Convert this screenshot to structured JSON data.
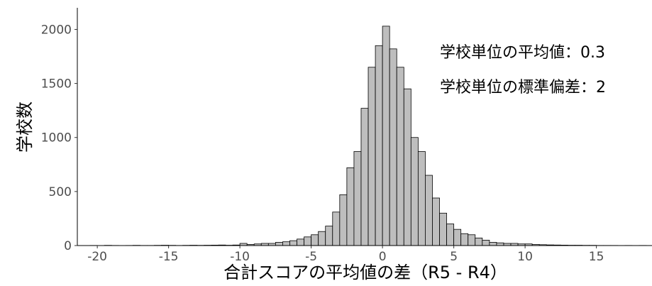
{
  "chart_data": {
    "type": "histogram",
    "x_label": "合計スコアの平均値の差（R5 - R4）",
    "y_label": "学校数",
    "annotations": [
      "学校単位の平均値：0.3",
      "学校単位の標準偏差：2"
    ],
    "bins": [
      -20.5,
      -20,
      -19.5,
      -19,
      -18.5,
      -18,
      -17.5,
      -17,
      -16.5,
      -16,
      -15.5,
      -15,
      -14.5,
      -14,
      -13.5,
      -13,
      -12.5,
      -12,
      -11.5,
      -11,
      -10.5,
      -10,
      -9.5,
      -9,
      -8.5,
      -8,
      -7.5,
      -7,
      -6.5,
      -6,
      -5.5,
      -5,
      -4.5,
      -4,
      -3.5,
      -3,
      -2.5,
      -2,
      -1.5,
      -1,
      -0.5,
      0,
      0.5,
      1,
      1.5,
      2,
      2.5,
      3,
      3.5,
      4,
      4.5,
      5,
      5.5,
      6,
      6.5,
      7,
      7.5,
      8,
      8.5,
      9,
      9.5,
      10,
      10.5,
      11,
      11.5,
      12,
      12.5,
      13,
      13.5,
      14,
      14.5,
      15,
      15.5,
      16,
      16.5,
      17,
      17.5,
      18,
      18.5
    ],
    "values": [
      1,
      0,
      2,
      1,
      0,
      1,
      2,
      1,
      1,
      2,
      3,
      2,
      1,
      2,
      3,
      2,
      3,
      4,
      5,
      3,
      5,
      20,
      10,
      15,
      20,
      20,
      30,
      35,
      45,
      60,
      80,
      100,
      130,
      180,
      310,
      470,
      720,
      870,
      1270,
      1650,
      1850,
      2030,
      1820,
      1650,
      1450,
      1000,
      870,
      650,
      440,
      300,
      200,
      150,
      110,
      100,
      70,
      50,
      30,
      25,
      20,
      20,
      15,
      15,
      10,
      8,
      6,
      5,
      4,
      3,
      3,
      2,
      2,
      1,
      1,
      1,
      0,
      1,
      0,
      1
    ],
    "color": "#bebebe",
    "xlim": [
      -21.4,
      18.9
    ],
    "xticks": [
      -20,
      -15,
      -10,
      -5,
      0,
      5,
      10,
      15
    ],
    "ylim": [
      0,
      2200
    ],
    "yticks": [
      0,
      500,
      1000,
      1500,
      2000
    ],
    "grid": false
  }
}
